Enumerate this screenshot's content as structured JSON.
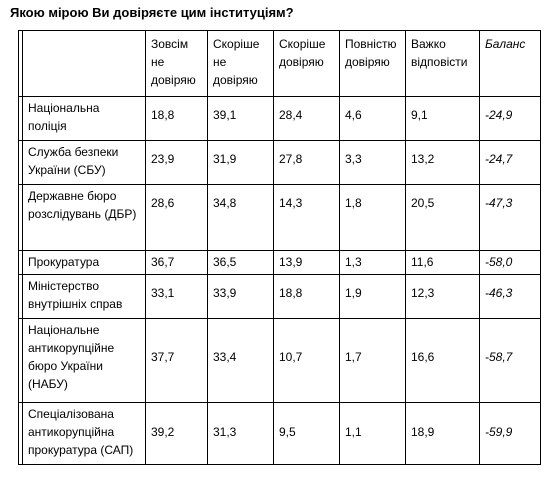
{
  "title": "Якою мірою Ви довіряєте цим інституціям?",
  "columns": [
    "Зовсім не довіряю",
    "Скоріше не довіряю",
    "Скоріше довіряю",
    "Повністю довіряю",
    "Важко відповісти",
    "Баланс"
  ],
  "rows": [
    {
      "name": "Національна поліція",
      "values": [
        "18,8",
        "39,1",
        "28,4",
        "4,6",
        "9,1",
        "-24,9"
      ]
    },
    {
      "name": "Служба безпеки України (СБУ)",
      "values": [
        "23,9",
        "31,9",
        "27,8",
        "3,3",
        "13,2",
        "-24,7"
      ]
    },
    {
      "name": "Державне бюро розслідувань (ДБР)",
      "values": [
        "28,6",
        "34,8",
        "14,3",
        "1,8",
        "20,5",
        "-47,3"
      ]
    },
    {
      "name": "Прокуратура",
      "values": [
        "36,7",
        "36,5",
        "13,9",
        "1,3",
        "11,6",
        "-58,0"
      ]
    },
    {
      "name": "Міністерство внутрішніх справ",
      "values": [
        "33,1",
        "33,9",
        "18,8",
        "1,9",
        "12,3",
        "-46,3"
      ]
    },
    {
      "name": "Національне антикорупційне бюро України (НАБУ)",
      "values": [
        "37,7",
        "33,4",
        "10,7",
        "1,7",
        "16,6",
        "-58,7"
      ]
    },
    {
      "name": "Спеціалізована антикорупційна прокуратура (САП)",
      "values": [
        "39,2",
        "31,3",
        "9,5",
        "1,1",
        "18,9",
        "-59,9"
      ]
    }
  ]
}
